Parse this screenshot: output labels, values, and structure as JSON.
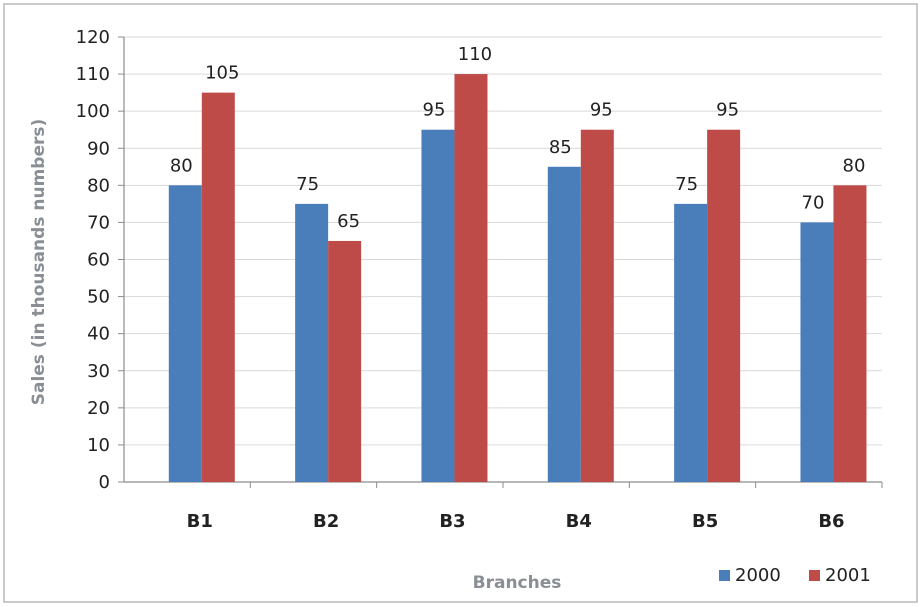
{
  "chart_data": {
    "type": "bar",
    "categories": [
      "B1",
      "B2",
      "B3",
      "B4",
      "B5",
      "B6"
    ],
    "series": [
      {
        "name": "2000",
        "color": "#4a7ebb",
        "values": [
          80,
          75,
          95,
          85,
          75,
          70
        ]
      },
      {
        "name": "2001",
        "color": "#be4b48",
        "values": [
          105,
          65,
          110,
          95,
          95,
          80
        ]
      }
    ],
    "xlabel": "Branches",
    "ylabel": "Sales (in thousands numbers)",
    "ylim": [
      0,
      120
    ],
    "yticks": [
      0,
      10,
      20,
      30,
      40,
      50,
      60,
      70,
      80,
      90,
      100,
      110,
      120
    ],
    "grid": true,
    "data_labels": true,
    "legend_position": "bottom-right"
  }
}
